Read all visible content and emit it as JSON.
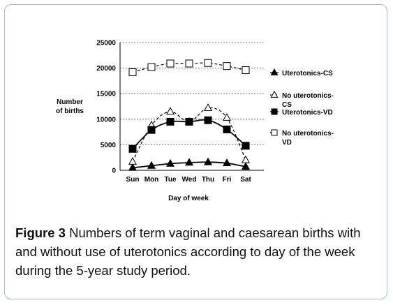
{
  "chart_data": {
    "type": "line",
    "categories": [
      "Sun",
      "Mon",
      "Tue",
      "Wed",
      "Thu",
      "Fri",
      "Sat"
    ],
    "ylabel": [
      "Number",
      "of births"
    ],
    "xlabel": "Day of week",
    "ylim": [
      0,
      25000
    ],
    "yticks": [
      0,
      5000,
      10000,
      15000,
      20000,
      25000
    ],
    "grid": true,
    "legend_position": "right",
    "series": [
      {
        "name": "Uterotonics-CS",
        "legend_lines": [
          "Uterotonics-CS"
        ],
        "marker": "triangle",
        "filled": true,
        "dashed": false,
        "values": [
          500,
          900,
          1300,
          1500,
          1600,
          1400,
          700
        ]
      },
      {
        "name": "No uterotonics-CS",
        "legend_lines": [
          "No uterotonics-",
          "CS"
        ],
        "marker": "triangle",
        "filled": false,
        "dashed": true,
        "values": [
          1700,
          8800,
          11500,
          9500,
          12200,
          10300,
          2000
        ]
      },
      {
        "name": "Uterotonics-VD",
        "legend_lines": [
          "Uterotonics-VD"
        ],
        "marker": "square",
        "filled": true,
        "dashed": false,
        "values": [
          4200,
          7900,
          9500,
          9500,
          9800,
          8000,
          4800
        ]
      },
      {
        "name": "No uterotonics-VD",
        "legend_lines": [
          "No uterotonics-",
          "VD"
        ],
        "marker": "square",
        "filled": false,
        "dashed": true,
        "values": [
          19200,
          20200,
          20900,
          20900,
          21000,
          20400,
          19600
        ]
      }
    ]
  },
  "caption": {
    "label": "Figure 3",
    "text": " Numbers of term vaginal and caesarean births with and without use of uterotonics according to day of the week during the 5-year study period."
  }
}
